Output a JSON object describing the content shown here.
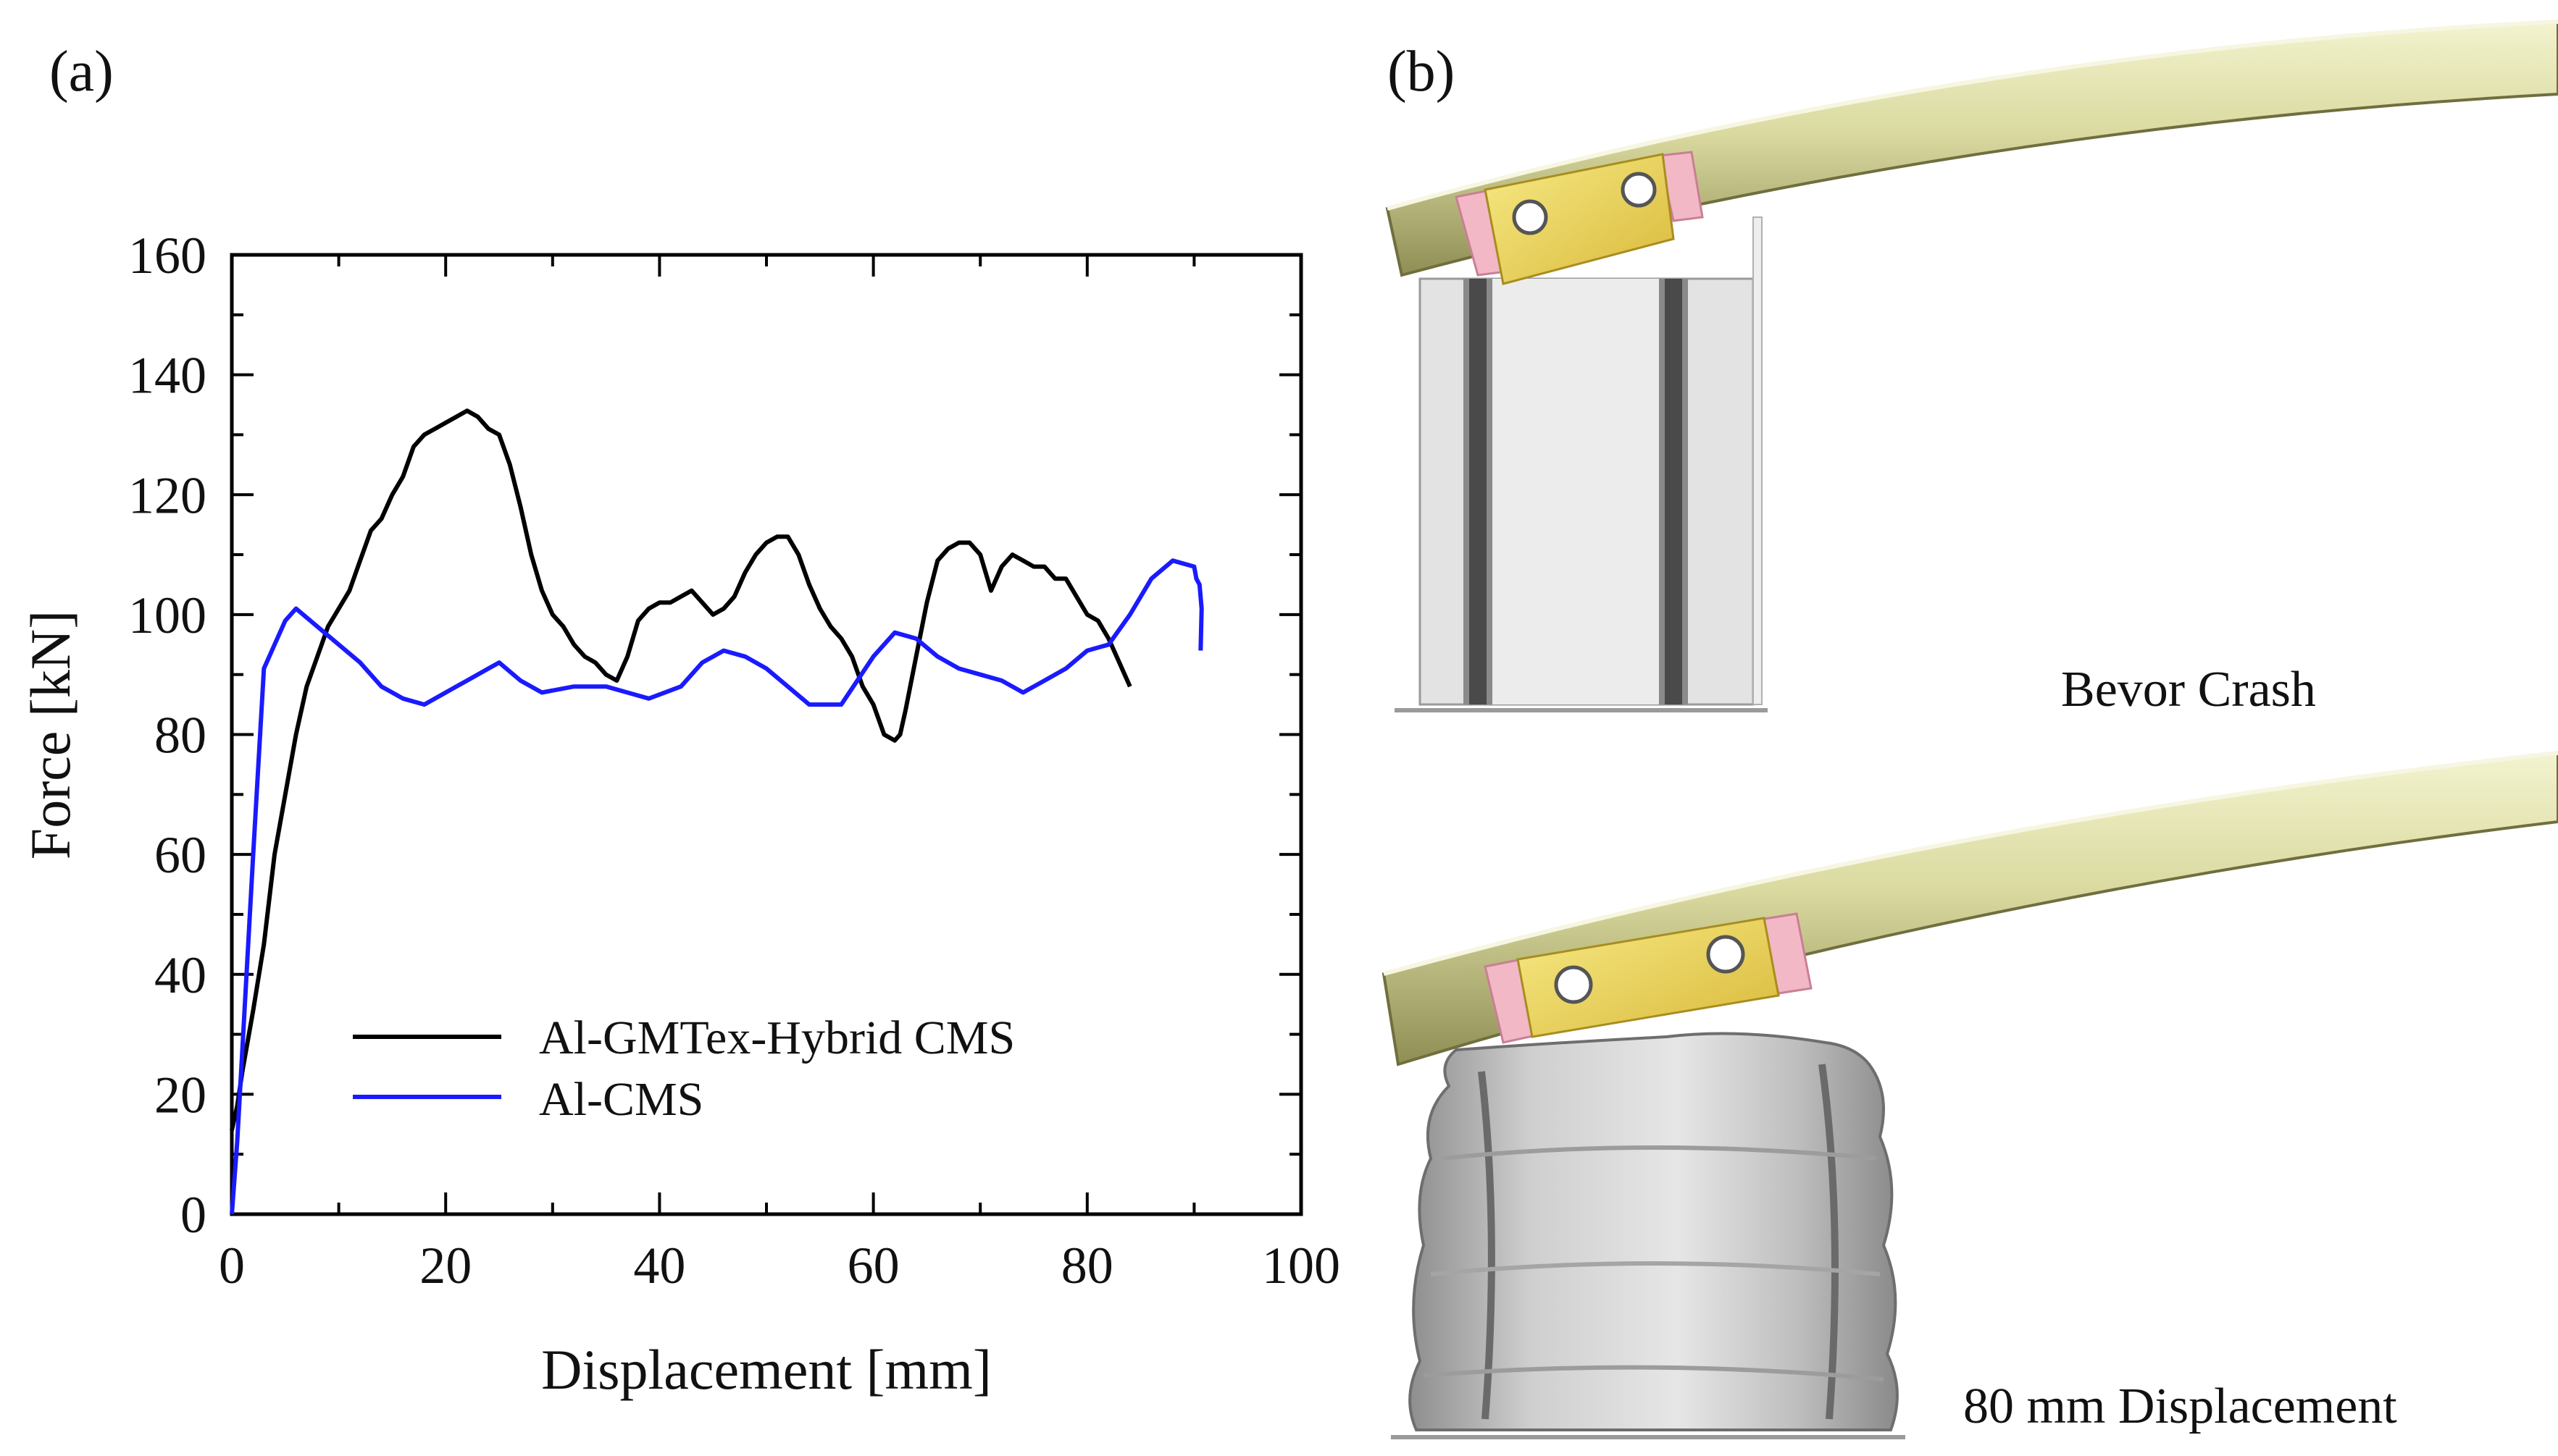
{
  "panel_a": {
    "label": "(a)"
  },
  "panel_b": {
    "label": "(b)",
    "captions": {
      "before": "Bevor Crash",
      "after": "80 mm Displacement"
    }
  },
  "colors": {
    "hybrid": "#000000",
    "al_cms": "#1a1aff",
    "tube": "#dcdca6",
    "tube_dark": "#8f8f55",
    "pad_pink": "#f2b8c6",
    "plate_yellow": "#f0dc5a",
    "column_grey": "#dcdcdc",
    "crushed_grey": "#bdbdbd"
  },
  "icons": {
    "holes": "circle-hole-icon"
  },
  "chart_data": {
    "type": "line",
    "title": "",
    "xlabel": "Displacement [mm]",
    "ylabel": "Force [kN]",
    "xlim": [
      0,
      100
    ],
    "ylim": [
      0,
      160
    ],
    "xticks": [
      0,
      20,
      40,
      60,
      80,
      100
    ],
    "yticks": [
      0,
      20,
      40,
      60,
      80,
      100,
      120,
      140,
      160
    ],
    "grid": false,
    "legend_position": "bottom-left",
    "series": [
      {
        "name": "Al-GMTex-Hybrid CMS",
        "color": "#000000",
        "x": [
          0,
          0.5,
          1,
          2,
          3,
          4,
          5,
          6,
          7,
          8,
          9,
          10,
          11,
          12,
          13,
          14,
          15,
          16,
          17,
          18,
          19,
          20,
          21,
          22,
          23,
          24,
          25,
          26,
          27,
          28,
          29,
          30,
          31,
          32,
          33,
          34,
          35,
          36,
          37,
          38,
          39,
          40,
          41,
          42,
          43,
          44,
          45,
          46,
          47,
          48,
          49,
          50,
          51,
          52,
          53,
          54,
          55,
          56,
          57,
          58,
          59,
          60,
          61,
          62,
          62.5,
          63,
          64,
          65,
          66,
          67,
          68,
          69,
          70,
          71,
          72,
          73,
          74,
          75,
          76,
          77,
          78,
          79,
          80,
          81,
          82,
          83,
          84
        ],
        "y": [
          14,
          18,
          24,
          34,
          45,
          60,
          70,
          80,
          88,
          93,
          98,
          101,
          104,
          109,
          114,
          116,
          120,
          123,
          128,
          130,
          131,
          132,
          133,
          134,
          133,
          131,
          130,
          125,
          118,
          110,
          104,
          100,
          98,
          95,
          93,
          92,
          90,
          89,
          93,
          99,
          101,
          102,
          102,
          103,
          104,
          102,
          100,
          101,
          103,
          107,
          110,
          112,
          113,
          113,
          110,
          105,
          101,
          98,
          96,
          93,
          88,
          85,
          80,
          79,
          80,
          84,
          93,
          102,
          109,
          111,
          112,
          112,
          110,
          104,
          108,
          110,
          109,
          108,
          108,
          106,
          106,
          103,
          100,
          99,
          96,
          92,
          88
        ]
      },
      {
        "name": "Al-CMS",
        "color": "#1a1aff",
        "x": [
          0,
          0.5,
          1,
          2,
          3,
          4,
          5,
          6,
          8,
          10,
          12,
          14,
          16,
          18,
          20,
          22,
          24,
          25,
          27,
          29,
          32,
          35,
          37,
          39,
          42,
          44,
          46,
          48,
          50,
          52,
          54,
          57,
          60,
          62,
          64,
          66,
          68,
          70,
          72,
          74,
          76,
          78,
          80,
          82,
          84,
          86,
          88,
          90,
          90.2,
          90.5,
          90.7,
          90.6
        ],
        "y": [
          0,
          12,
          28,
          60,
          91,
          95,
          99,
          101,
          98,
          95,
          92,
          88,
          86,
          85,
          87,
          89,
          91,
          92,
          89,
          87,
          88,
          88,
          87,
          86,
          88,
          92,
          94,
          93,
          91,
          88,
          85,
          85,
          93,
          97,
          96,
          93,
          91,
          90,
          89,
          87,
          89,
          91,
          94,
          95,
          100,
          106,
          109,
          108,
          106,
          105,
          101,
          94
        ]
      }
    ]
  }
}
